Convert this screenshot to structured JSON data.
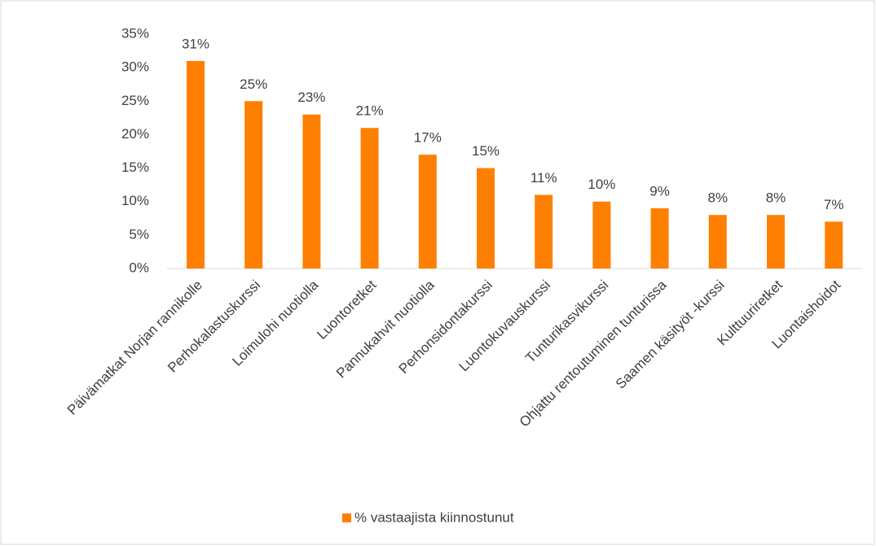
{
  "chart_data": {
    "type": "bar",
    "categories": [
      "Päivämatkat Norjan rannikolle",
      "Perhokalastuskurssi",
      "Loimulohi nuotiolla",
      "Luontoretket",
      "Pannukahvit nuotiolla",
      "Perhonsidontakurssi",
      "Luontokuvauskurssi",
      "Tunturikasvikurssi",
      "Ohjattu rentoutuminen tunturissa",
      "Saamen käsityöt -kurssi",
      "Kulttuuriretket",
      "Luontaishoidot"
    ],
    "series": [
      {
        "name": "% vastaajista kiinnostunut",
        "color": "#ff8000",
        "values": [
          31,
          25,
          23,
          21,
          17,
          15,
          11,
          10,
          9,
          8,
          8,
          7
        ],
        "value_labels": [
          "31%",
          "25%",
          "23%",
          "21%",
          "17%",
          "15%",
          "11%",
          "10%",
          "9%",
          "8%",
          "8%",
          "7%"
        ]
      }
    ],
    "ylim": [
      0,
      35
    ],
    "yticks": [
      {
        "value": 0,
        "label": "0%"
      },
      {
        "value": 5,
        "label": "5%"
      },
      {
        "value": 10,
        "label": "10%"
      },
      {
        "value": 15,
        "label": "15%"
      },
      {
        "value": 20,
        "label": "20%"
      },
      {
        "value": 25,
        "label": "25%"
      },
      {
        "value": 30,
        "label": "30%"
      },
      {
        "value": 35,
        "label": "35%"
      }
    ],
    "grid": false,
    "legend": "bottom"
  }
}
